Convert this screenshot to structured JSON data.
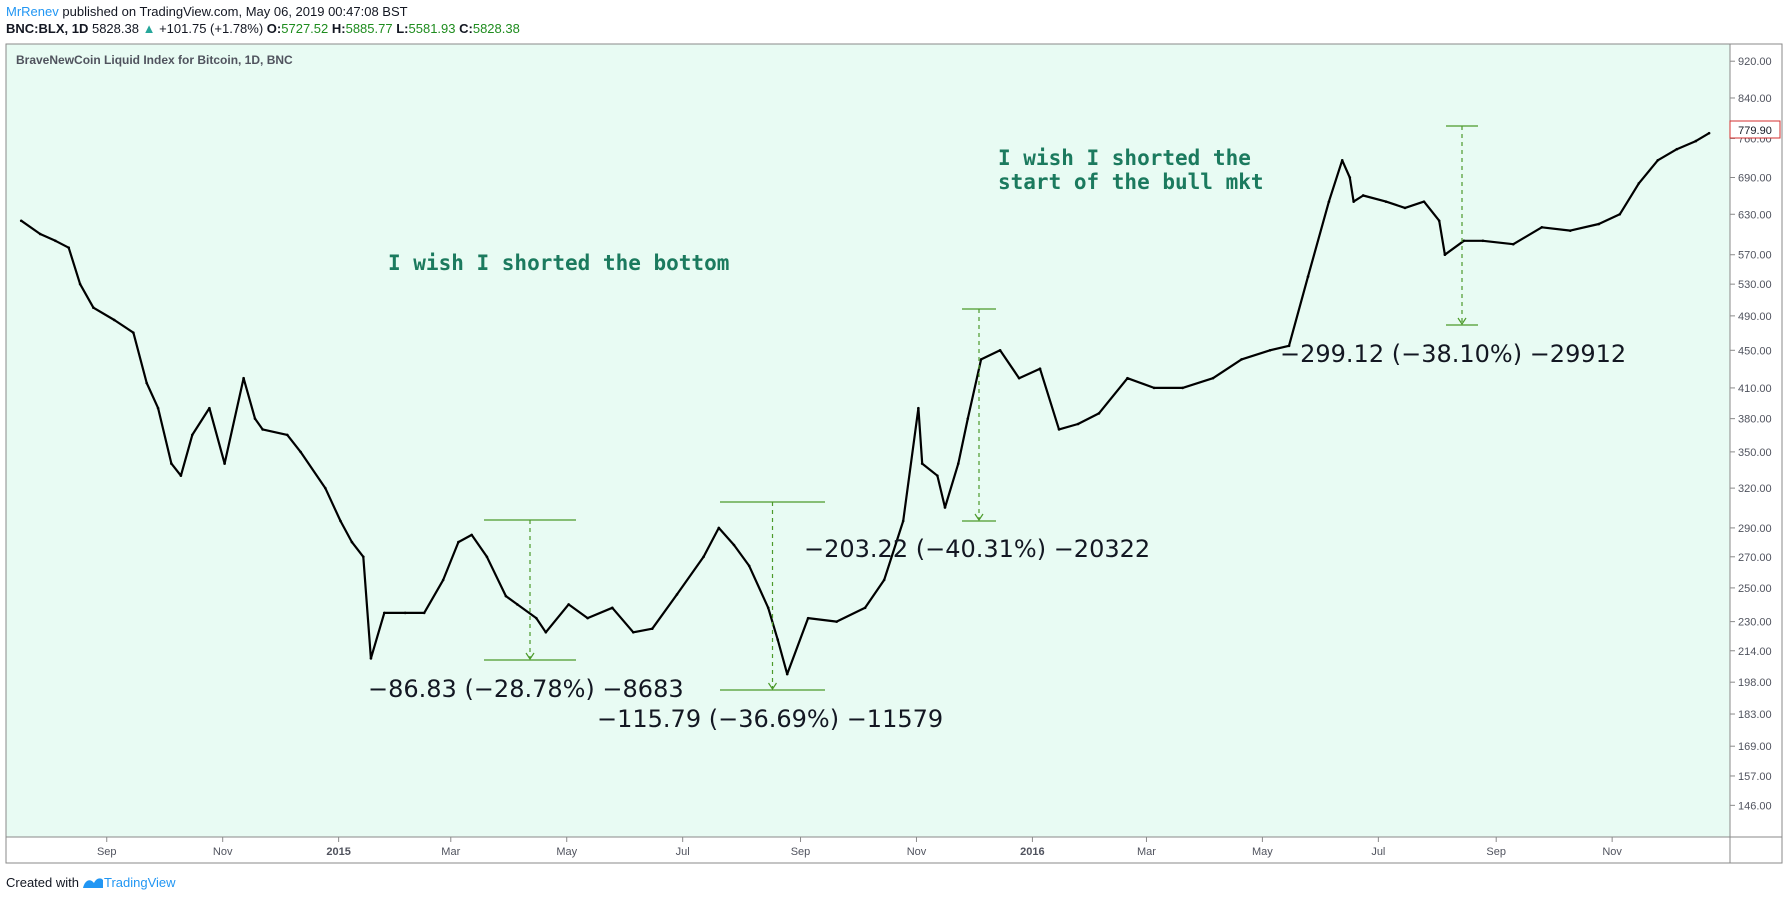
{
  "header": {
    "user": "MrRenev",
    "published": "published on TradingView.com, May 06, 2019 00:47:08 BST",
    "symbol": "BNC:BLX, 1D",
    "last": "5828.38",
    "change_arrow": "▲",
    "change": "+101.75 (+1.78%)",
    "o_label": "O:",
    "o_val": "5727.52",
    "h_label": "H:",
    "h_val": "5885.77",
    "l_label": "L:",
    "l_val": "5581.93",
    "c_label": "C:",
    "c_val": "5828.38"
  },
  "chart_title": "BraveNewCoin Liquid Index for Bitcoin, 1D, BNC",
  "price_badge": "779.90",
  "footer": {
    "created_with": "Created with",
    "brand": "TradingView"
  },
  "colors": {
    "background": "#e8fbf3",
    "candle": "#000000",
    "annotation_text": "#1b7a5e",
    "measure": "#4c9a2a",
    "badge": "#d32f2f"
  },
  "chart_data": {
    "type": "line",
    "title": "BraveNewCoin Liquid Index for Bitcoin, 1D, BNC",
    "y_scale": "log",
    "ylim": [
      135,
      960
    ],
    "y_ticks": [
      "920.00",
      "840.00",
      "760.00",
      "690.00",
      "630.00",
      "570.00",
      "530.00",
      "490.00",
      "450.00",
      "410.00",
      "380.00",
      "350.00",
      "320.00",
      "290.00",
      "270.00",
      "250.00",
      "230.00",
      "214.00",
      "198.00",
      "183.00",
      "169.00",
      "157.00",
      "146.00"
    ],
    "x_ticks": [
      "Sep",
      "Nov",
      "2015",
      "Mar",
      "May",
      "Jul",
      "Sep",
      "Nov",
      "2016",
      "Mar",
      "May",
      "Jul",
      "Sep",
      "Nov"
    ],
    "x_ticks_bold": [
      "2015",
      "2016"
    ],
    "x": [
      "2014-07-18",
      "2014-07-28",
      "2014-08-05",
      "2014-08-12",
      "2014-08-18",
      "2014-08-25",
      "2014-09-05",
      "2014-09-15",
      "2014-09-22",
      "2014-09-28",
      "2014-10-05",
      "2014-10-10",
      "2014-10-16",
      "2014-10-25",
      "2014-11-02",
      "2014-11-12",
      "2014-11-18",
      "2014-11-22",
      "2014-12-05",
      "2014-12-12",
      "2014-12-25",
      "2015-01-02",
      "2015-01-08",
      "2015-01-14",
      "2015-01-18",
      "2015-01-25",
      "2015-02-05",
      "2015-02-15",
      "2015-02-25",
      "2015-03-05",
      "2015-03-12",
      "2015-03-20",
      "2015-03-30",
      "2015-04-05",
      "2015-04-15",
      "2015-04-20",
      "2015-05-02",
      "2015-05-12",
      "2015-05-25",
      "2015-06-05",
      "2015-06-15",
      "2015-06-28",
      "2015-07-12",
      "2015-07-20",
      "2015-07-28",
      "2015-08-05",
      "2015-08-15",
      "2015-08-20",
      "2015-08-25",
      "2015-09-05",
      "2015-09-20",
      "2015-10-05",
      "2015-10-15",
      "2015-10-25",
      "2015-11-02",
      "2015-11-04",
      "2015-11-12",
      "2015-11-16",
      "2015-11-23",
      "2015-11-28",
      "2015-12-05",
      "2015-12-15",
      "2015-12-25",
      "2016-01-05",
      "2016-01-15",
      "2016-01-25",
      "2016-02-05",
      "2016-02-20",
      "2016-03-05",
      "2016-03-20",
      "2016-04-05",
      "2016-04-20",
      "2016-05-05",
      "2016-05-15",
      "2016-05-25",
      "2016-06-05",
      "2016-06-12",
      "2016-06-16",
      "2016-06-18",
      "2016-06-23",
      "2016-07-05",
      "2016-07-15",
      "2016-07-25",
      "2016-08-02",
      "2016-08-05",
      "2016-08-15",
      "2016-08-25",
      "2016-09-10",
      "2016-09-25",
      "2016-10-10",
      "2016-10-25",
      "2016-11-05",
      "2016-11-15",
      "2016-11-25",
      "2016-12-05",
      "2016-12-15",
      "2016-12-22"
    ],
    "series": [
      {
        "values": [
          620,
          600,
          590,
          580,
          530,
          500,
          485,
          470,
          415,
          390,
          340,
          330,
          365,
          390,
          340,
          420,
          380,
          370,
          365,
          350,
          320,
          295,
          280,
          270,
          210,
          235,
          235,
          235,
          255,
          280,
          285,
          270,
          245,
          240,
          232,
          224,
          240,
          232,
          238,
          224,
          226,
          246,
          270,
          290,
          278,
          264,
          238,
          220,
          202,
          232,
          230,
          238,
          255,
          295,
          390,
          340,
          330,
          305,
          340,
          380,
          440,
          450,
          420,
          430,
          370,
          375,
          385,
          420,
          410,
          410,
          420,
          440,
          450,
          455,
          540,
          650,
          720,
          690,
          650,
          660,
          650,
          640,
          650,
          620,
          570,
          590,
          590,
          585,
          610,
          605,
          615,
          630,
          680,
          720,
          740,
          755,
          770
        ]
      }
    ],
    "annotations": [
      {
        "text": "I wish I shorted the bottom"
      },
      {
        "text": "I wish I shorted the start of the bull mkt"
      },
      {
        "text": "−86.83 (−28.78%) −8683"
      },
      {
        "text": "−115.79 (−36.69%) −11579"
      },
      {
        "text": "−203.22 (−40.31%) −20322"
      },
      {
        "text": "−299.12 (−38.10%) −29912"
      }
    ]
  }
}
